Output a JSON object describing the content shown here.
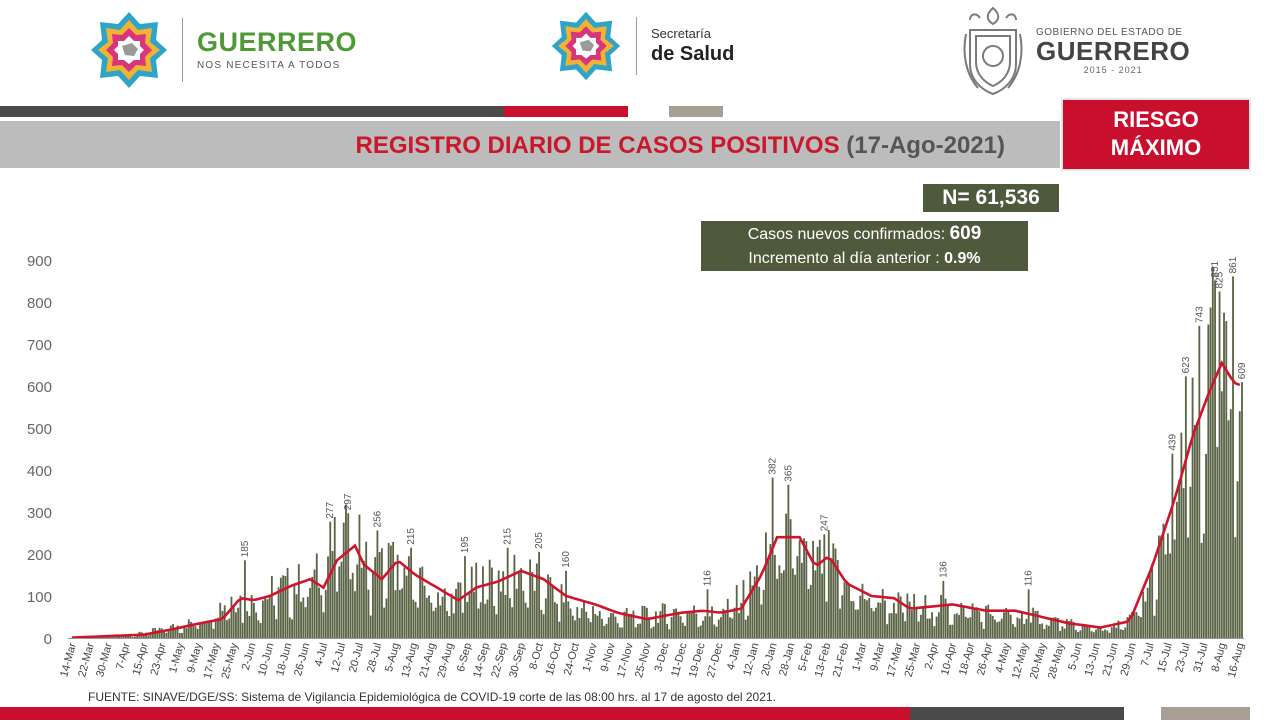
{
  "header": {
    "guerrero_logo": {
      "title": "GUERRERO",
      "subtitle": "NOS NECESITA A TODOS"
    },
    "salud_logo": {
      "line1": "Secretaría",
      "line2": "de Salud"
    },
    "gobierno_logo": {
      "line1": "GOBIERNO DEL ESTADO DE",
      "line2": "GUERRERO",
      "line3": "2015 - 2021"
    }
  },
  "banner": {
    "title": "REGISTRO DIARIO DE CASOS POSITIVOS",
    "date": "(17-Ago-2021)",
    "risk_label_line1": "RIESGO",
    "risk_label_line2": "MÁXIMO"
  },
  "summary": {
    "total": "N= 61,536",
    "new_cases_label": "Casos nuevos confirmados:",
    "new_cases_value": "609",
    "increment_label": "Incremento al día anterior :",
    "increment_value": "0.9%"
  },
  "source": "FUENTE: SINAVE/DGE/SS: Sistema de Vigilancia Epidemiológica de COVID-19 corte de las 08:00 hrs. al 17 de agosto del 2021.",
  "colors": {
    "bar": "#5b6546",
    "moving_average": "#d0142c",
    "brand_red": "#c8102e",
    "brand_gray": "#4a4a4a",
    "box_olive": "#4f5a3d"
  },
  "chart_data": {
    "type": "bar",
    "title": "REGISTRO DIARIO DE CASOS POSITIVOS (17-Ago-2021)",
    "xlabel": "",
    "ylabel": "",
    "ylim": [
      0,
      900
    ],
    "y_ticks": [
      0,
      100,
      200,
      300,
      400,
      500,
      600,
      700,
      800,
      900
    ],
    "x_range": [
      "2020-03-14",
      "2021-08-17"
    ],
    "x_tick_labels": [
      "14-Mar",
      "22-Mar",
      "30-Mar",
      "7-Apr",
      "15-Apr",
      "23-Apr",
      "1-May",
      "9-May",
      "17-May",
      "25-May",
      "2-Jun",
      "10-Jun",
      "18-Jun",
      "26-Jun",
      "4-Jul",
      "12-Jul",
      "20-Jul",
      "28-Jul",
      "5-Aug",
      "13-Aug",
      "21-Aug",
      "29-Aug",
      "6-Sep",
      "14-Sep",
      "22-Sep",
      "30-Sep",
      "8-Oct",
      "16-Oct",
      "24-Oct",
      "1-Nov",
      "9-Nov",
      "17-Nov",
      "25-Nov",
      "3-Dec",
      "11-Dec",
      "19-Dec",
      "27-Dec",
      "4-Jan",
      "12-Jan",
      "20-Jan",
      "28-Jan",
      "5-Feb",
      "13-Feb",
      "21-Feb",
      "1-Mar",
      "9-Mar",
      "17-Mar",
      "25-Mar",
      "2-Apr",
      "10-Apr",
      "18-Apr",
      "26-Apr",
      "4-May",
      "12-May",
      "20-May",
      "28-May",
      "5-Jun",
      "13-Jun",
      "21-Jun",
      "29-Jun",
      "7-Jul",
      "15-Jul",
      "23-Jul",
      "31-Jul",
      "8-Aug",
      "16-Aug"
    ],
    "daily_cases_keypoints": [
      [
        "2020-03-14",
        1
      ],
      [
        "2020-04-10",
        8
      ],
      [
        "2020-04-25",
        25
      ],
      [
        "2020-05-10",
        45
      ],
      [
        "2020-05-25",
        110
      ],
      [
        "2020-06-01",
        90
      ],
      [
        "2020-06-15",
        130
      ],
      [
        "2020-06-30",
        150
      ],
      [
        "2020-07-08",
        230
      ],
      [
        "2020-07-18",
        260
      ],
      [
        "2020-07-26",
        160
      ],
      [
        "2020-08-02",
        200
      ],
      [
        "2020-08-15",
        140
      ],
      [
        "2020-08-30",
        100
      ],
      [
        "2020-09-10",
        140
      ],
      [
        "2020-09-28",
        175
      ],
      [
        "2020-10-12",
        130
      ],
      [
        "2020-10-25",
        80
      ],
      [
        "2020-11-10",
        55
      ],
      [
        "2020-11-25",
        60
      ],
      [
        "2020-12-10",
        70
      ],
      [
        "2020-12-28",
        60
      ],
      [
        "2021-01-10",
        130
      ],
      [
        "2021-01-22",
        250
      ],
      [
        "2021-01-31",
        240
      ],
      [
        "2021-02-07",
        190
      ],
      [
        "2021-02-14",
        200
      ],
      [
        "2021-02-25",
        120
      ],
      [
        "2021-03-15",
        90
      ],
      [
        "2021-04-01",
        80
      ],
      [
        "2021-04-15",
        80
      ],
      [
        "2021-05-01",
        60
      ],
      [
        "2021-05-20",
        55
      ],
      [
        "2021-06-05",
        30
      ],
      [
        "2021-06-20",
        25
      ],
      [
        "2021-06-30",
        55
      ],
      [
        "2021-07-10",
        180
      ],
      [
        "2021-07-20",
        370
      ],
      [
        "2021-07-28",
        520
      ],
      [
        "2021-08-04",
        690
      ],
      [
        "2021-08-08",
        640
      ],
      [
        "2021-08-12",
        600
      ],
      [
        "2021-08-17",
        609
      ]
    ],
    "bar_labels": [
      [
        "2020-05-30",
        185
      ],
      [
        "2020-07-07",
        277
      ],
      [
        "2020-07-15",
        297
      ],
      [
        "2020-07-28",
        256
      ],
      [
        "2020-08-12",
        215
      ],
      [
        "2020-09-05",
        195
      ],
      [
        "2020-09-24",
        215
      ],
      [
        "2020-10-08",
        205
      ],
      [
        "2020-10-20",
        160
      ],
      [
        "2020-12-22",
        116
      ],
      [
        "2021-01-20",
        382
      ],
      [
        "2021-01-27",
        365
      ],
      [
        "2021-02-12",
        247
      ],
      [
        "2021-04-06",
        136
      ],
      [
        "2021-05-14",
        116
      ],
      [
        "2021-07-17",
        439
      ],
      [
        "2021-07-23",
        623
      ],
      [
        "2021-07-29",
        743
      ],
      [
        "2021-08-05",
        851
      ],
      [
        "2021-08-07",
        825
      ],
      [
        "2021-08-13",
        861
      ],
      [
        "2021-08-17",
        609
      ]
    ],
    "moving_average_keypoints": [
      [
        "2020-03-14",
        1
      ],
      [
        "2020-04-15",
        8
      ],
      [
        "2020-04-27",
        20
      ],
      [
        "2020-05-10",
        35
      ],
      [
        "2020-05-20",
        45
      ],
      [
        "2020-05-28",
        95
      ],
      [
        "2020-06-03",
        90
      ],
      [
        "2020-06-10",
        100
      ],
      [
        "2020-06-20",
        125
      ],
      [
        "2020-06-28",
        140
      ],
      [
        "2020-07-04",
        120
      ],
      [
        "2020-07-10",
        185
      ],
      [
        "2020-07-18",
        220
      ],
      [
        "2020-07-22",
        175
      ],
      [
        "2020-07-30",
        140
      ],
      [
        "2020-08-06",
        185
      ],
      [
        "2020-08-14",
        150
      ],
      [
        "2020-08-22",
        125
      ],
      [
        "2020-09-02",
        90
      ],
      [
        "2020-09-10",
        120
      ],
      [
        "2020-09-20",
        135
      ],
      [
        "2020-09-30",
        160
      ],
      [
        "2020-10-10",
        140
      ],
      [
        "2020-10-20",
        100
      ],
      [
        "2020-11-02",
        80
      ],
      [
        "2020-11-12",
        60
      ],
      [
        "2020-11-25",
        45
      ],
      [
        "2020-12-10",
        60
      ],
      [
        "2020-12-20",
        65
      ],
      [
        "2020-12-28",
        60
      ],
      [
        "2021-01-06",
        70
      ],
      [
        "2021-01-15",
        150
      ],
      [
        "2021-01-22",
        240
      ],
      [
        "2021-02-01",
        240
      ],
      [
        "2021-02-08",
        170
      ],
      [
        "2021-02-14",
        195
      ],
      [
        "2021-02-22",
        130
      ],
      [
        "2021-03-05",
        100
      ],
      [
        "2021-03-15",
        95
      ],
      [
        "2021-03-22",
        70
      ],
      [
        "2021-04-01",
        75
      ],
      [
        "2021-04-10",
        80
      ],
      [
        "2021-04-25",
        65
      ],
      [
        "2021-05-08",
        65
      ],
      [
        "2021-05-20",
        50
      ],
      [
        "2021-06-01",
        35
      ],
      [
        "2021-06-15",
        25
      ],
      [
        "2021-06-28",
        40
      ],
      [
        "2021-07-08",
        170
      ],
      [
        "2021-07-18",
        330
      ],
      [
        "2021-07-26",
        480
      ],
      [
        "2021-08-02",
        580
      ],
      [
        "2021-08-08",
        655
      ],
      [
        "2021-08-12",
        620
      ],
      [
        "2021-08-15",
        600
      ],
      [
        "2021-08-17",
        605
      ]
    ]
  }
}
